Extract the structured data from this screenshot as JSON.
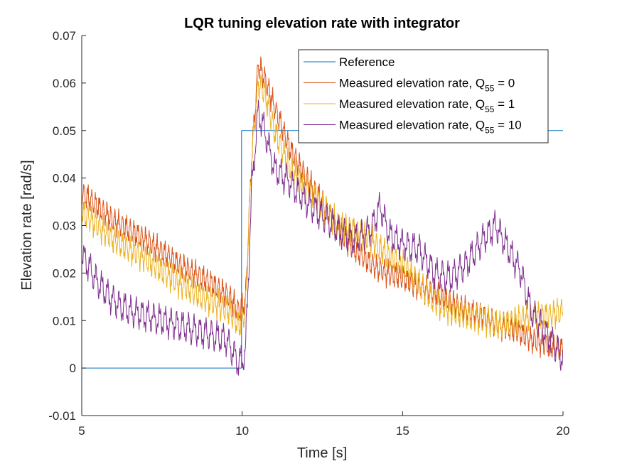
{
  "chart_data": {
    "type": "line",
    "title": "LQR tuning elevation rate with integrator",
    "xlabel": "Time [s]",
    "ylabel": "Elevation rate [rad/s]",
    "xlim": [
      5,
      20
    ],
    "ylim": [
      -0.01,
      0.07
    ],
    "x_ticks": [
      5,
      10,
      15,
      20
    ],
    "x_tick_labels": [
      "5",
      "10",
      "15",
      "20"
    ],
    "y_ticks": [
      -0.01,
      0,
      0.01,
      0.02,
      0.03,
      0.04,
      0.05,
      0.06,
      0.07
    ],
    "y_tick_labels": [
      "-0.01",
      "0",
      "0.01",
      "0.02",
      "0.03",
      "0.04",
      "0.05",
      "0.06",
      "0.07"
    ],
    "grid": false,
    "legend_position": "top-right",
    "series": [
      {
        "name": "Reference",
        "legend_main": "Reference",
        "legend_sub": "",
        "legend_tail": "",
        "color": "#0072BD",
        "x": [
          5,
          9.98,
          9.98,
          20
        ],
        "y": [
          0,
          0,
          0.05,
          0.05
        ]
      },
      {
        "name": "Measured elevation rate, Q55 = 0",
        "legend_main": "Measured elevation rate, Q",
        "legend_sub": "55",
        "legend_tail": " = 0",
        "color": "#D95319",
        "osc_amp": 0.0025,
        "osc_period": 0.12,
        "x": [
          5,
          6,
          7,
          8,
          9,
          9.6,
          9.9,
          10.1,
          10.3,
          10.5,
          10.7,
          11,
          11.5,
          12,
          12.5,
          13,
          13.5,
          14,
          14.5,
          15,
          15.5,
          16,
          16.5,
          17,
          17.5,
          18,
          18.5,
          19,
          19.5,
          20
        ],
        "y": [
          0.037,
          0.031,
          0.027,
          0.022,
          0.018,
          0.015,
          0.012,
          0.014,
          0.045,
          0.064,
          0.061,
          0.055,
          0.046,
          0.04,
          0.035,
          0.029,
          0.025,
          0.022,
          0.02,
          0.019,
          0.017,
          0.016,
          0.014,
          0.012,
          0.011,
          0.009,
          0.008,
          0.006,
          0.005,
          0.004
        ]
      },
      {
        "name": "Measured elevation rate, Q55 = 1",
        "legend_main": "Measured elevation rate, Q",
        "legend_sub": "55",
        "legend_tail": " = 1",
        "color": "#EDB120",
        "osc_amp": 0.0028,
        "osc_period": 0.12,
        "x": [
          5,
          6,
          7,
          8,
          9,
          9.6,
          9.9,
          10.1,
          10.3,
          10.5,
          10.7,
          11,
          11.5,
          12,
          12.5,
          13,
          13.5,
          14,
          14.5,
          15,
          15.5,
          16,
          16.5,
          17,
          17.5,
          18,
          18.5,
          19,
          19.5,
          20
        ],
        "y": [
          0.033,
          0.027,
          0.023,
          0.018,
          0.014,
          0.012,
          0.009,
          0.012,
          0.045,
          0.06,
          0.058,
          0.05,
          0.042,
          0.038,
          0.034,
          0.03,
          0.029,
          0.027,
          0.024,
          0.022,
          0.018,
          0.014,
          0.012,
          0.011,
          0.01,
          0.009,
          0.01,
          0.011,
          0.011,
          0.012
        ]
      },
      {
        "name": "Measured elevation rate, Q55 = 10",
        "legend_main": "Measured elevation rate, Q",
        "legend_sub": "55",
        "legend_tail": " = 10",
        "color": "#7E2F8E",
        "osc_amp": 0.003,
        "osc_period": 0.18,
        "x": [
          5,
          5.5,
          6,
          6.5,
          7,
          7.5,
          8,
          8.5,
          9,
          9.5,
          9.9,
          10.1,
          10.3,
          10.5,
          10.7,
          11,
          11.5,
          12,
          12.5,
          13,
          13.5,
          14,
          14.3,
          14.6,
          15,
          15.5,
          16,
          16.5,
          17,
          17.5,
          17.9,
          18.3,
          18.7,
          19,
          19.5,
          20
        ],
        "y": [
          0.024,
          0.018,
          0.014,
          0.012,
          0.011,
          0.01,
          0.009,
          0.008,
          0.007,
          0.006,
          0.001,
          0.003,
          0.038,
          0.054,
          0.05,
          0.042,
          0.039,
          0.035,
          0.032,
          0.029,
          0.027,
          0.029,
          0.034,
          0.028,
          0.026,
          0.025,
          0.02,
          0.019,
          0.022,
          0.027,
          0.03,
          0.025,
          0.02,
          0.012,
          0.007,
          0.002
        ]
      }
    ]
  }
}
